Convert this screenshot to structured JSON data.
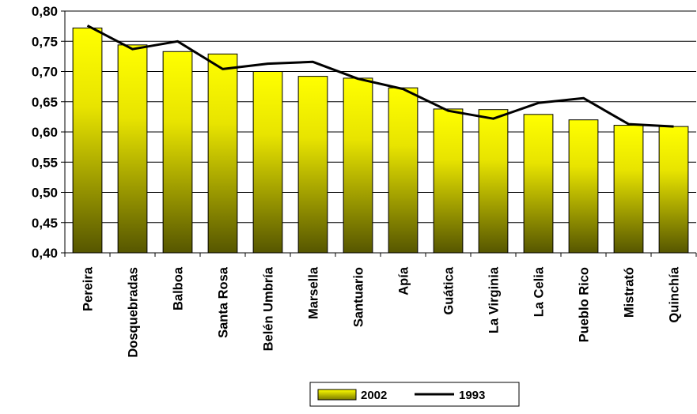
{
  "chart_data": {
    "type": "bar",
    "categories": [
      "Pereira",
      "Dosquebradas",
      "Balboa",
      "Santa Rosa",
      "Belén Umbría",
      "Marsella",
      "Santuario",
      "Apía",
      "Guática",
      "La Virginia",
      "La Celia",
      "Pueblo Rico",
      "Mistrató",
      "Quinchía"
    ],
    "series": [
      {
        "name": "2002",
        "type": "bar",
        "values": [
          0.772,
          0.744,
          0.733,
          0.729,
          0.7,
          0.692,
          0.689,
          0.673,
          0.638,
          0.637,
          0.629,
          0.62,
          0.611,
          0.609
        ]
      },
      {
        "name": "1993",
        "type": "line",
        "values": [
          0.776,
          0.737,
          0.75,
          0.704,
          0.713,
          0.716,
          0.688,
          0.671,
          0.635,
          0.622,
          0.648,
          0.656,
          0.613,
          0.609
        ]
      }
    ],
    "y_ticks": [
      "0,40",
      "0,45",
      "0,50",
      "0,55",
      "0,60",
      "0,65",
      "0,70",
      "0,75",
      "0,80"
    ],
    "ylim": [
      0.4,
      0.8
    ],
    "grid": true,
    "legend_position": "bottom-center",
    "colors": {
      "bar_top": "#FFFF00",
      "bar_mid": "#D8D400",
      "bar_bottom": "#5A5A00",
      "line": "#000000",
      "grid": "#000000"
    }
  }
}
